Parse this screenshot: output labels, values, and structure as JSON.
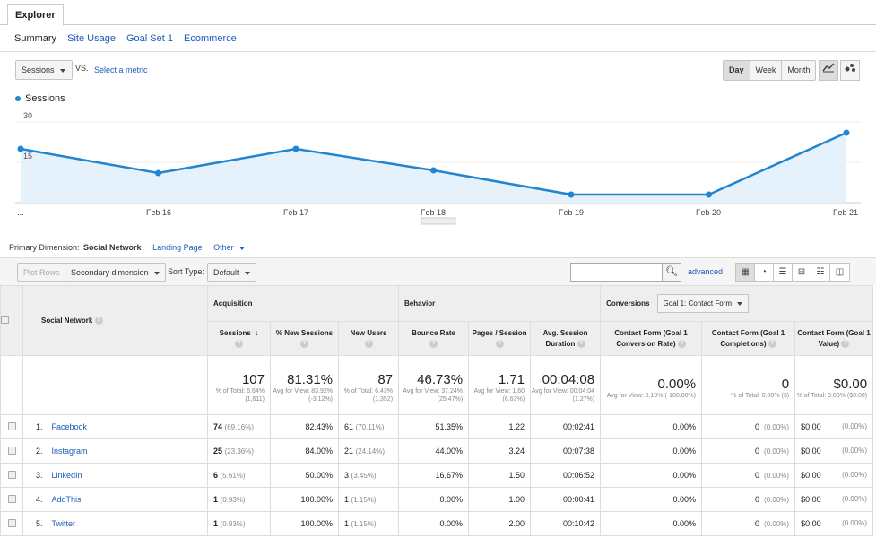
{
  "tab": {
    "label": "Explorer"
  },
  "subtabs": [
    "Summary",
    "Site Usage",
    "Goal Set 1",
    "Ecommerce"
  ],
  "metric": {
    "selected": "Sessions",
    "vs": "VS.",
    "select_metric": "Select a metric"
  },
  "range": {
    "options": [
      "Day",
      "Week",
      "Month"
    ],
    "selected": "Day"
  },
  "legend": {
    "label": "Sessions"
  },
  "chart_data": {
    "type": "area",
    "series": [
      {
        "name": "Sessions",
        "values": [
          20,
          11,
          20,
          12,
          3,
          3,
          26
        ]
      }
    ],
    "x": [
      "...",
      "Feb 16",
      "Feb 17",
      "Feb 18",
      "Feb 19",
      "Feb 20",
      "Feb 21"
    ],
    "y_ticks": [
      "30",
      "15"
    ],
    "ylim": [
      0,
      30
    ],
    "color": "#2185d0",
    "fill": "#e6f2fb"
  },
  "primary_dimension": {
    "label": "Primary Dimension:",
    "selected": "Social Network",
    "others": [
      "Landing Page",
      "Other"
    ]
  },
  "toolbar": {
    "plot_rows": "Plot Rows",
    "secondary_dimension": "Secondary dimension",
    "sort_type_label": "Sort Type:",
    "sort_type_value": "Default",
    "advanced": "advanced"
  },
  "table": {
    "group_acquisition": "Acquisition",
    "group_behavior": "Behavior",
    "group_conversions": "Conversions",
    "goal_select": "Goal 1: Contact Form",
    "dimension_header": "Social Network",
    "columns": [
      "Sessions",
      "% New Sessions",
      "New Users",
      "Bounce Rate",
      "Pages / Session",
      "Avg. Session Duration",
      "Contact Form (Goal 1 Conversion Rate)",
      "Contact Form (Goal 1 Completions)",
      "Contact Form (Goal 1 Value)"
    ],
    "totals": [
      {
        "big": "107",
        "small": "% of Total: 6.64% (1,611)"
      },
      {
        "big": "81.31%",
        "small": "Avg for View: 83.92% (-3.12%)"
      },
      {
        "big": "87",
        "small": "% of Total: 6.43% (1,352)"
      },
      {
        "big": "46.73%",
        "small": "Avg for View: 37.24% (25.47%)"
      },
      {
        "big": "1.71",
        "small": "Avg for View: 1.60 (6.63%)"
      },
      {
        "big": "00:04:08",
        "small": "Avg for View: 00:04:04 (1.27%)"
      },
      {
        "big": "0.00%",
        "small": "Avg for View: 0.19% (-100.00%)"
      },
      {
        "big": "0",
        "small": "% of Total: 0.00% (3)"
      },
      {
        "big": "$0.00",
        "small": "% of Total: 0.00% ($0.00)"
      }
    ],
    "rows": [
      {
        "idx": "1.",
        "name": "Facebook",
        "sessions": "74",
        "sessions_pct": "(69.16%)",
        "new_sessions": "82.43%",
        "new_users": "61",
        "new_users_pct": "(70.11%)",
        "bounce": "51.35%",
        "pages": "1.22",
        "duration": "00:02:41",
        "conv_rate": "0.00%",
        "completions": "0",
        "completions_pct": "(0.00%)",
        "value": "$0.00",
        "value_pct": "(0.00%)"
      },
      {
        "idx": "2.",
        "name": "Instagram",
        "sessions": "25",
        "sessions_pct": "(23.36%)",
        "new_sessions": "84.00%",
        "new_users": "21",
        "new_users_pct": "(24.14%)",
        "bounce": "44.00%",
        "pages": "3.24",
        "duration": "00:07:38",
        "conv_rate": "0.00%",
        "completions": "0",
        "completions_pct": "(0.00%)",
        "value": "$0.00",
        "value_pct": "(0.00%)"
      },
      {
        "idx": "3.",
        "name": "LinkedIn",
        "sessions": "6",
        "sessions_pct": "(5.61%)",
        "new_sessions": "50.00%",
        "new_users": "3",
        "new_users_pct": "(3.45%)",
        "bounce": "16.67%",
        "pages": "1.50",
        "duration": "00:06:52",
        "conv_rate": "0.00%",
        "completions": "0",
        "completions_pct": "(0.00%)",
        "value": "$0.00",
        "value_pct": "(0.00%)"
      },
      {
        "idx": "4.",
        "name": "AddThis",
        "sessions": "1",
        "sessions_pct": "(0.93%)",
        "new_sessions": "100.00%",
        "new_users": "1",
        "new_users_pct": "(1.15%)",
        "bounce": "0.00%",
        "pages": "1.00",
        "duration": "00:00:41",
        "conv_rate": "0.00%",
        "completions": "0",
        "completions_pct": "(0.00%)",
        "value": "$0.00",
        "value_pct": "(0.00%)"
      },
      {
        "idx": "5.",
        "name": "Twitter",
        "sessions": "1",
        "sessions_pct": "(0.93%)",
        "new_sessions": "100.00%",
        "new_users": "1",
        "new_users_pct": "(1.15%)",
        "bounce": "0.00%",
        "pages": "2.00",
        "duration": "00:10:42",
        "conv_rate": "0.00%",
        "completions": "0",
        "completions_pct": "(0.00%)",
        "value": "$0.00",
        "value_pct": "(0.00%)"
      }
    ]
  }
}
